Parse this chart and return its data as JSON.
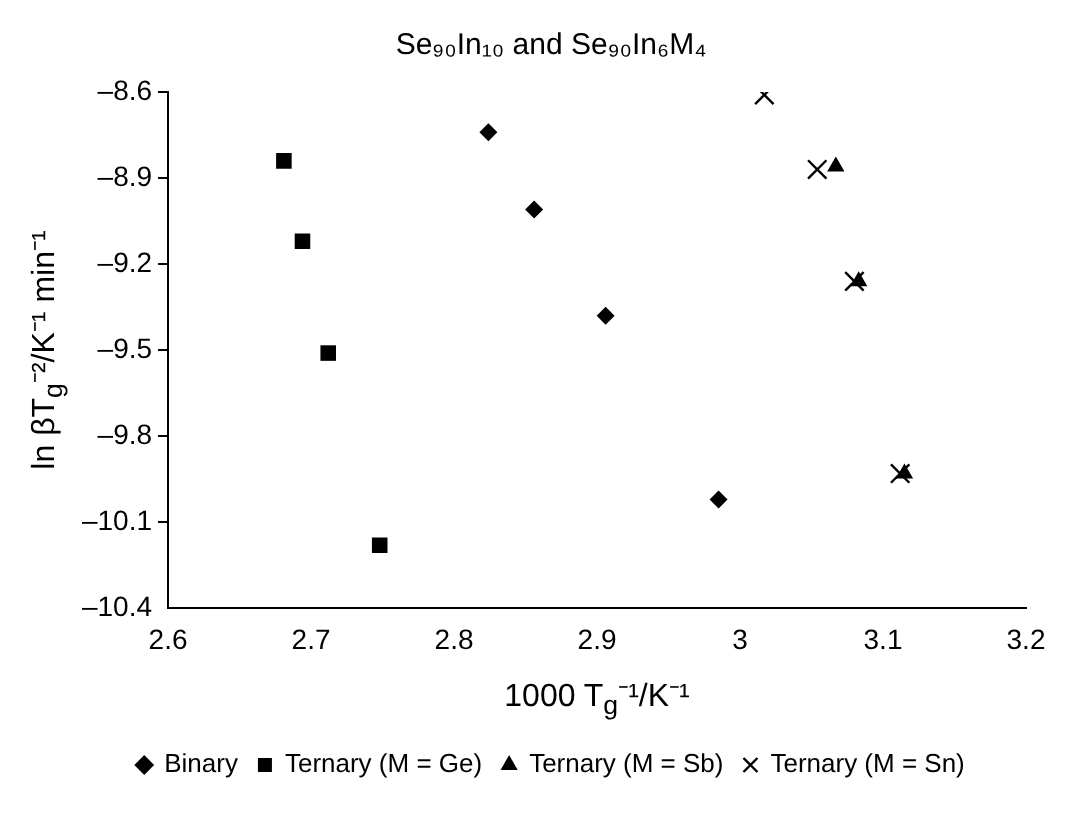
{
  "chart_data": {
    "type": "scatter",
    "title": "Se₉₀In₁₀ and Se₉₀In₆M₄",
    "xlabel": "1000 T$_{g}$⁻¹/K⁻¹",
    "ylabel": "ln βT$_{g}$⁻²/K⁻¹ min⁻¹",
    "xlim": [
      2.6,
      3.2
    ],
    "xticks": [
      2.6,
      2.7,
      2.8,
      2.9,
      3,
      3.1,
      3.2
    ],
    "ylim": [
      -10.4,
      -8.6
    ],
    "yticks": [
      {
        "value": -10.4,
        "label": "–10.4"
      },
      {
        "value": -10.1,
        "label": "–10.1"
      },
      {
        "value": -9.8,
        "label": "–9.8"
      },
      {
        "value": -9.5,
        "label": "–9.5"
      },
      {
        "value": -9.2,
        "label": "–9.2"
      },
      {
        "value": -8.9,
        "label": "–8.9"
      },
      {
        "value": -8.6,
        "label": "–8.6"
      }
    ],
    "grid": false,
    "legend": "bottom",
    "series": [
      {
        "name": "Binary",
        "color": "#000000",
        "marker": "diamond",
        "x": [
          2.824,
          2.856,
          2.906,
          2.985
        ],
        "values": [
          -8.74,
          -9.01,
          -9.38,
          -10.02
        ]
      },
      {
        "name": "Ternary (M = Ge)",
        "color": "#000000",
        "marker": "square",
        "x": [
          2.681,
          2.694,
          2.712,
          2.748
        ],
        "values": [
          -8.84,
          -9.12,
          -9.51,
          -10.18
        ]
      },
      {
        "name": "Ternary (M = Sb)",
        "color": "#000000",
        "marker": "triangle",
        "x": [
          3.067,
          3.083,
          3.115
        ],
        "values": [
          -8.86,
          -9.26,
          -9.93
        ]
      },
      {
        "name": "Ternary (M = Sn)",
        "color": "#000000",
        "marker": "cross",
        "x": [
          3.017,
          3.054,
          3.08,
          3.112
        ],
        "values": [
          -8.61,
          -8.87,
          -9.26,
          -9.93
        ]
      }
    ]
  }
}
